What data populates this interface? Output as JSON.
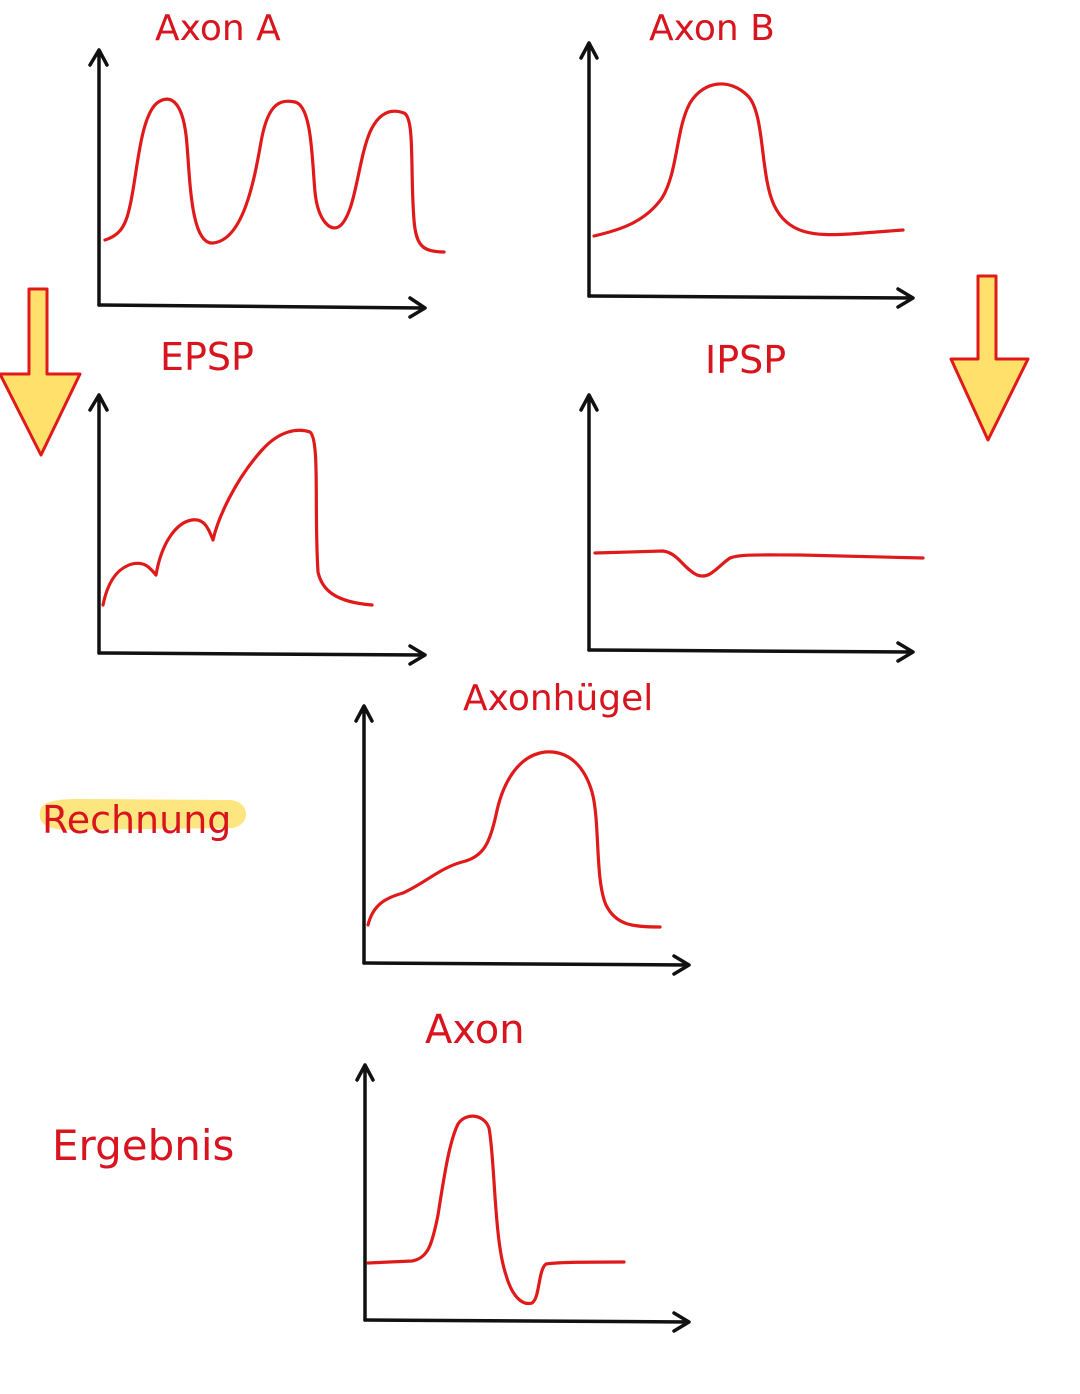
{
  "labels": {
    "axon_a": "Axon A",
    "axon_b": "Axon B",
    "epsp": "EPSP",
    "ipsp": "IPSP",
    "axonhuegel": "Axonhügel",
    "axon": "Axon",
    "rechnung": "Rechnung",
    "ergebnis": "Ergebnis"
  },
  "colors": {
    "curve": "#e01a1a",
    "label": "#d8141e",
    "axis": "#111111",
    "arrow_fill": "#ffe06b",
    "highlight": "#fde580"
  },
  "icons": {
    "left_arrow": "down-arrow-icon",
    "right_arrow": "down-arrow-icon"
  }
}
